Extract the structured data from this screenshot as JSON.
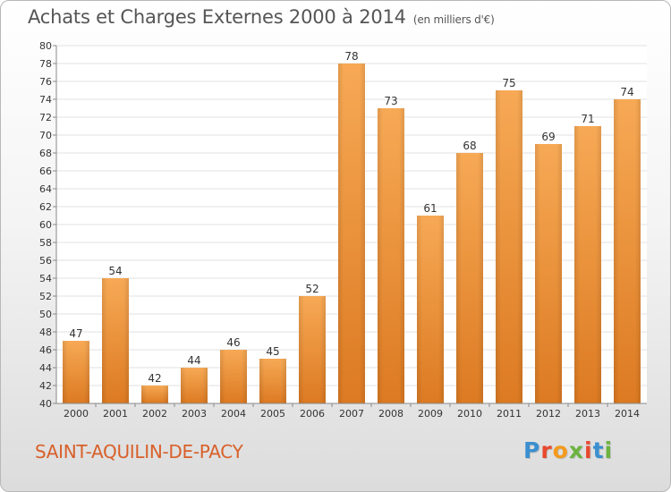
{
  "header": {
    "title": "Achats et Charges Externes 2000 à 2014",
    "unit": "(en milliers d'€)"
  },
  "footer": {
    "town": "SAINT-AQUILIN-DE-PACY",
    "logo_letters": [
      "P",
      "r",
      "o",
      "x",
      "i",
      "t",
      "i"
    ],
    "logo_colors": [
      "#3a8fd0",
      "#e8482e",
      "#f39a1d",
      "#6cb33f",
      "#e8482e",
      "#3a8fd0",
      "#6cb33f"
    ]
  },
  "chart_data": {
    "type": "bar",
    "categories": [
      "2000",
      "2001",
      "2002",
      "2003",
      "2004",
      "2005",
      "2006",
      "2007",
      "2008",
      "2009",
      "2010",
      "2011",
      "2012",
      "2013",
      "2014"
    ],
    "values": [
      47,
      54,
      42,
      44,
      46,
      45,
      52,
      78,
      73,
      61,
      68,
      75,
      69,
      71,
      74
    ],
    "title": "Achats et Charges Externes 2000 à 2014",
    "ylim": [
      40,
      80
    ],
    "yticks": [
      40,
      42,
      44,
      46,
      48,
      50,
      52,
      54,
      56,
      58,
      60,
      62,
      64,
      66,
      68,
      70,
      72,
      74,
      76,
      78,
      80
    ],
    "grid": true,
    "bar_color": "#f0923a"
  }
}
